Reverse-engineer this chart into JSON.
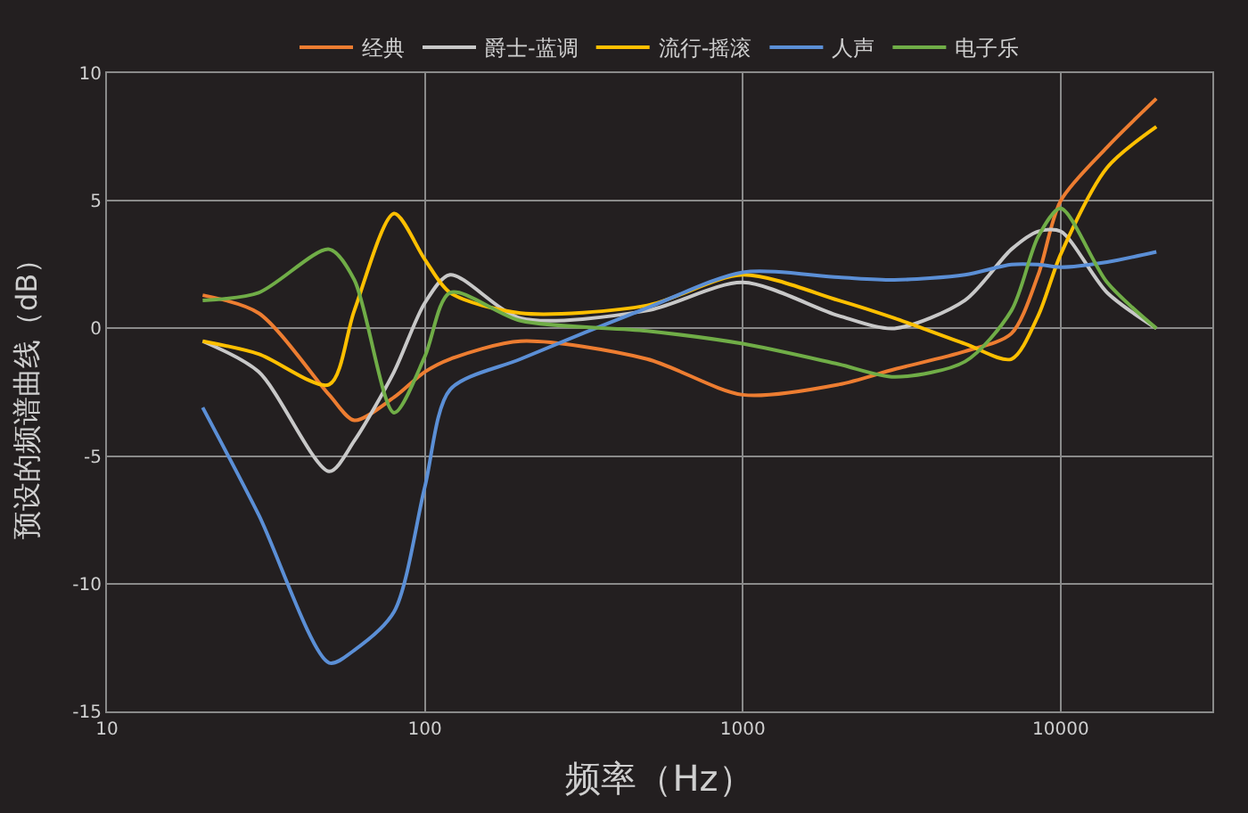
{
  "chart_data": {
    "type": "line",
    "xlabel": "频率（Hz）",
    "ylabel": "预设的频谱曲线（dB）",
    "x": [
      20,
      30,
      50,
      60,
      80,
      100,
      120,
      200,
      500,
      1000,
      2000,
      3000,
      5000,
      7000,
      8500,
      10000,
      14000,
      20000
    ],
    "series": [
      {
        "name": "经典",
        "color": "#ed7d31",
        "values": [
          1.3,
          0.6,
          -2.6,
          -3.6,
          -2.7,
          -1.7,
          -1.2,
          -0.5,
          -1.2,
          -2.6,
          -2.2,
          -1.6,
          -0.9,
          -0.2,
          2.1,
          5.0,
          7.1,
          9.0
        ]
      },
      {
        "name": "爵士-蓝调",
        "color": "#c8c8c8",
        "values": [
          -0.5,
          -1.7,
          -5.6,
          -4.4,
          -1.7,
          1.0,
          2.1,
          0.4,
          0.7,
          1.8,
          0.5,
          0.0,
          1.1,
          3.1,
          3.8,
          3.8,
          1.4,
          0.0
        ]
      },
      {
        "name": "流行-摇滚",
        "color": "#ffc000",
        "values": [
          -0.5,
          -1.0,
          -2.2,
          0.7,
          4.5,
          2.7,
          1.4,
          0.6,
          0.9,
          2.1,
          1.1,
          0.4,
          -0.6,
          -1.2,
          0.5,
          2.9,
          6.3,
          7.9
        ]
      },
      {
        "name": "人声",
        "color": "#5b8fd6",
        "values": [
          -3.1,
          -7.3,
          -13.1,
          -12.6,
          -11.1,
          -6.2,
          -2.4,
          -1.2,
          0.8,
          2.2,
          2.0,
          1.9,
          2.1,
          2.5,
          2.5,
          2.4,
          2.6,
          3.0
        ]
      },
      {
        "name": "电子乐",
        "color": "#70ad47",
        "values": [
          1.1,
          1.4,
          3.1,
          1.9,
          -3.3,
          -1.1,
          1.4,
          0.3,
          -0.1,
          -0.6,
          -1.4,
          -1.9,
          -1.3,
          0.7,
          3.6,
          4.7,
          1.8,
          0.0
        ]
      }
    ],
    "log": "x",
    "xlim": [
      10,
      30000
    ],
    "xticks": [
      10,
      100,
      1000,
      10000
    ],
    "ylim": [
      -15,
      10
    ],
    "yticks": [
      -15,
      -10,
      -5,
      0,
      5,
      10
    ],
    "grid": true,
    "legend": "top",
    "marker": "none",
    "line_style": "solid"
  }
}
